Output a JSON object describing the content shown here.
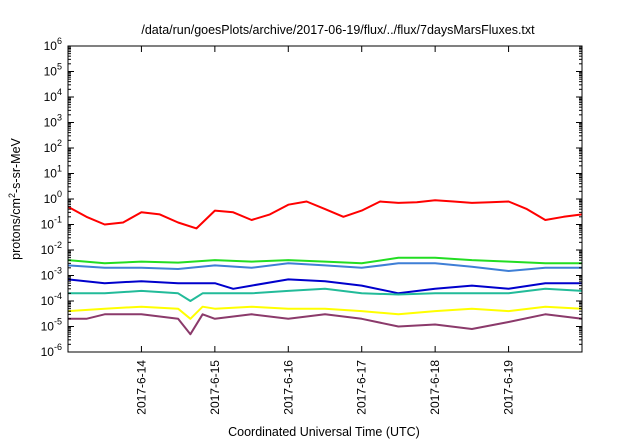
{
  "chart_data": {
    "type": "line",
    "title": "/data/run/goesPlots/archive/2017-06-19/flux/../flux/7daysMarsFluxes.txt",
    "xlabel": "Coordinated Universal Time (UTC)",
    "ylabel": {
      "pre": "protons/cm",
      "sup": "2",
      "post": "-s-sr-MeV"
    },
    "yscale": "log",
    "ylim_exp": [
      -6,
      6
    ],
    "y_ticks": [
      {
        "base": "10",
        "exp": "-6"
      },
      {
        "base": "10",
        "exp": "-5"
      },
      {
        "base": "10",
        "exp": "-4"
      },
      {
        "base": "10",
        "exp": "-3"
      },
      {
        "base": "10",
        "exp": "-2"
      },
      {
        "base": "10",
        "exp": "-1"
      },
      {
        "base": "10",
        "exp": "0"
      },
      {
        "base": "10",
        "exp": "1"
      },
      {
        "base": "10",
        "exp": "2"
      },
      {
        "base": "10",
        "exp": "3"
      },
      {
        "base": "10",
        "exp": "4"
      },
      {
        "base": "10",
        "exp": "5"
      },
      {
        "base": "10",
        "exp": "6"
      }
    ],
    "x_start": "2017-06-13 00:00",
    "x_end": "2017-06-20 00:00",
    "x_ticks": [
      "2017-6-14",
      "2017-6-15",
      "2017-6-16",
      "2017-6-17",
      "2017-6-18",
      "2017-6-19"
    ],
    "x_tick_dates": [
      "2017-06-14 00:00",
      "2017-06-15 00:00",
      "2017-06-16 00:00",
      "2017-06-17 00:00",
      "2017-06-18 00:00",
      "2017-06-19 00:00"
    ],
    "grid": false,
    "legend": "none",
    "series": [
      {
        "color": "#ff0000",
        "points": [
          [
            "2017-06-13 00:00",
            0.5
          ],
          [
            "2017-06-13 06:00",
            0.2
          ],
          [
            "2017-06-13 12:00",
            0.1
          ],
          [
            "2017-06-13 18:00",
            0.12
          ],
          [
            "2017-06-14 00:00",
            0.3
          ],
          [
            "2017-06-14 06:00",
            0.25
          ],
          [
            "2017-06-14 12:00",
            0.12
          ],
          [
            "2017-06-14 18:00",
            0.07
          ],
          [
            "2017-06-15 00:00",
            0.35
          ],
          [
            "2017-06-15 06:00",
            0.3
          ],
          [
            "2017-06-15 12:00",
            0.15
          ],
          [
            "2017-06-15 18:00",
            0.25
          ],
          [
            "2017-06-16 00:00",
            0.6
          ],
          [
            "2017-06-16 06:00",
            0.8
          ],
          [
            "2017-06-16 12:00",
            0.4
          ],
          [
            "2017-06-16 18:00",
            0.2
          ],
          [
            "2017-06-17 00:00",
            0.35
          ],
          [
            "2017-06-17 06:00",
            0.8
          ],
          [
            "2017-06-17 12:00",
            0.7
          ],
          [
            "2017-06-17 18:00",
            0.75
          ],
          [
            "2017-06-18 00:00",
            0.9
          ],
          [
            "2017-06-18 06:00",
            0.8
          ],
          [
            "2017-06-18 12:00",
            0.7
          ],
          [
            "2017-06-18 18:00",
            0.75
          ],
          [
            "2017-06-19 00:00",
            0.8
          ],
          [
            "2017-06-19 06:00",
            0.4
          ],
          [
            "2017-06-19 12:00",
            0.15
          ],
          [
            "2017-06-19 18:00",
            0.2
          ],
          [
            "2017-06-20 00:00",
            0.25
          ]
        ]
      },
      {
        "color": "#22dd22",
        "points": [
          [
            "2017-06-13 00:00",
            0.004
          ],
          [
            "2017-06-13 12:00",
            0.003
          ],
          [
            "2017-06-14 00:00",
            0.0035
          ],
          [
            "2017-06-14 12:00",
            0.0032
          ],
          [
            "2017-06-15 00:00",
            0.004
          ],
          [
            "2017-06-15 12:00",
            0.0035
          ],
          [
            "2017-06-16 00:00",
            0.004
          ],
          [
            "2017-06-16 12:00",
            0.0035
          ],
          [
            "2017-06-17 00:00",
            0.003
          ],
          [
            "2017-06-17 12:00",
            0.005
          ],
          [
            "2017-06-18 00:00",
            0.005
          ],
          [
            "2017-06-18 12:00",
            0.004
          ],
          [
            "2017-06-19 00:00",
            0.0035
          ],
          [
            "2017-06-19 12:00",
            0.003
          ],
          [
            "2017-06-20 00:00",
            0.003
          ]
        ]
      },
      {
        "color": "#3f7fd6",
        "points": [
          [
            "2017-06-13 00:00",
            0.0025
          ],
          [
            "2017-06-13 12:00",
            0.002
          ],
          [
            "2017-06-14 00:00",
            0.002
          ],
          [
            "2017-06-14 12:00",
            0.0018
          ],
          [
            "2017-06-15 00:00",
            0.0025
          ],
          [
            "2017-06-15 12:00",
            0.002
          ],
          [
            "2017-06-16 00:00",
            0.003
          ],
          [
            "2017-06-16 12:00",
            0.0025
          ],
          [
            "2017-06-17 00:00",
            0.002
          ],
          [
            "2017-06-17 12:00",
            0.003
          ],
          [
            "2017-06-18 00:00",
            0.003
          ],
          [
            "2017-06-18 12:00",
            0.0022
          ],
          [
            "2017-06-19 00:00",
            0.0015
          ],
          [
            "2017-06-19 12:00",
            0.002
          ],
          [
            "2017-06-20 00:00",
            0.002
          ]
        ]
      },
      {
        "color": "#0000cc",
        "points": [
          [
            "2017-06-13 00:00",
            0.0007
          ],
          [
            "2017-06-13 12:00",
            0.0005
          ],
          [
            "2017-06-14 00:00",
            0.0006
          ],
          [
            "2017-06-14 12:00",
            0.0005
          ],
          [
            "2017-06-15 00:00",
            0.0005
          ],
          [
            "2017-06-15 06:00",
            0.0003
          ],
          [
            "2017-06-15 12:00",
            0.0004
          ],
          [
            "2017-06-16 00:00",
            0.0007
          ],
          [
            "2017-06-16 12:00",
            0.0006
          ],
          [
            "2017-06-17 00:00",
            0.0004
          ],
          [
            "2017-06-17 12:00",
            0.0002
          ],
          [
            "2017-06-18 00:00",
            0.0003
          ],
          [
            "2017-06-18 12:00",
            0.0004
          ],
          [
            "2017-06-19 00:00",
            0.0003
          ],
          [
            "2017-06-19 12:00",
            0.0005
          ],
          [
            "2017-06-20 00:00",
            0.0005
          ]
        ]
      },
      {
        "color": "#22bb99",
        "points": [
          [
            "2017-06-13 00:00",
            0.0002
          ],
          [
            "2017-06-13 12:00",
            0.0002
          ],
          [
            "2017-06-14 00:00",
            0.00025
          ],
          [
            "2017-06-14 12:00",
            0.0002
          ],
          [
            "2017-06-14 16:00",
            0.0001
          ],
          [
            "2017-06-14 20:00",
            0.0002
          ],
          [
            "2017-06-15 00:00",
            0.0002
          ],
          [
            "2017-06-15 12:00",
            0.0002
          ],
          [
            "2017-06-16 00:00",
            0.00025
          ],
          [
            "2017-06-16 12:00",
            0.0003
          ],
          [
            "2017-06-17 00:00",
            0.0002
          ],
          [
            "2017-06-17 12:00",
            0.00018
          ],
          [
            "2017-06-18 00:00",
            0.0002
          ],
          [
            "2017-06-18 12:00",
            0.0002
          ],
          [
            "2017-06-19 00:00",
            0.0002
          ],
          [
            "2017-06-19 12:00",
            0.0003
          ],
          [
            "2017-06-20 00:00",
            0.00025
          ]
        ]
      },
      {
        "color": "#ffff00",
        "points": [
          [
            "2017-06-13 00:00",
            4e-05
          ],
          [
            "2017-06-13 12:00",
            5e-05
          ],
          [
            "2017-06-14 00:00",
            6e-05
          ],
          [
            "2017-06-14 12:00",
            5e-05
          ],
          [
            "2017-06-14 16:00",
            2e-05
          ],
          [
            "2017-06-14 20:00",
            6e-05
          ],
          [
            "2017-06-15 00:00",
            5e-05
          ],
          [
            "2017-06-15 12:00",
            6e-05
          ],
          [
            "2017-06-16 00:00",
            5e-05
          ],
          [
            "2017-06-16 12:00",
            5e-05
          ],
          [
            "2017-06-17 00:00",
            4e-05
          ],
          [
            "2017-06-17 12:00",
            3e-05
          ],
          [
            "2017-06-18 00:00",
            4e-05
          ],
          [
            "2017-06-18 12:00",
            5e-05
          ],
          [
            "2017-06-19 00:00",
            4e-05
          ],
          [
            "2017-06-19 12:00",
            6e-05
          ],
          [
            "2017-06-20 00:00",
            5e-05
          ]
        ]
      },
      {
        "color": "#8b3a6b",
        "points": [
          [
            "2017-06-13 00:00",
            2e-05
          ],
          [
            "2017-06-13 06:00",
            2e-05
          ],
          [
            "2017-06-13 12:00",
            3e-05
          ],
          [
            "2017-06-14 00:00",
            3e-05
          ],
          [
            "2017-06-14 12:00",
            2e-05
          ],
          [
            "2017-06-14 16:00",
            5e-06
          ],
          [
            "2017-06-14 20:00",
            3e-05
          ],
          [
            "2017-06-15 00:00",
            2e-05
          ],
          [
            "2017-06-15 12:00",
            3e-05
          ],
          [
            "2017-06-16 00:00",
            2e-05
          ],
          [
            "2017-06-16 12:00",
            3e-05
          ],
          [
            "2017-06-17 00:00",
            2e-05
          ],
          [
            "2017-06-17 12:00",
            1e-05
          ],
          [
            "2017-06-18 00:00",
            1.2e-05
          ],
          [
            "2017-06-18 12:00",
            8e-06
          ],
          [
            "2017-06-19 00:00",
            1.5e-05
          ],
          [
            "2017-06-19 12:00",
            3e-05
          ],
          [
            "2017-06-20 00:00",
            2e-05
          ]
        ]
      }
    ]
  }
}
